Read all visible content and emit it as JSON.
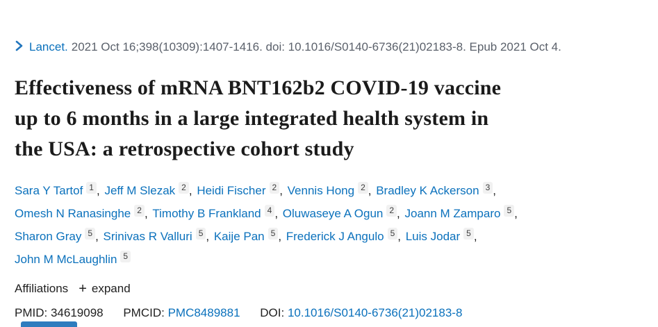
{
  "citation": {
    "journal_link": "Lancet.",
    "details": "2021 Oct 16;398(10309):1407-1416. doi: 10.1016/S0140-6736(21)02183-8. Epub 2021 Oct 4."
  },
  "title_lines": [
    "Effectiveness of mRNA BNT162b2 COVID-19 vaccine",
    "up to 6 months in a large integrated health system in",
    "the USA: a retrospective cohort study"
  ],
  "authors": [
    {
      "name": "Sara Y Tartof",
      "sup": "1"
    },
    {
      "name": "Jeff M Slezak",
      "sup": "2"
    },
    {
      "name": "Heidi Fischer",
      "sup": "2"
    },
    {
      "name": "Vennis Hong",
      "sup": "2"
    },
    {
      "name": "Bradley K Ackerson",
      "sup": "3"
    },
    {
      "name": "Omesh N Ranasinghe",
      "sup": "2"
    },
    {
      "name": "Timothy B Frankland",
      "sup": "4"
    },
    {
      "name": "Oluwaseye A Ogun",
      "sup": "2"
    },
    {
      "name": "Joann M Zamparo",
      "sup": "5"
    },
    {
      "name": "Sharon Gray",
      "sup": "5"
    },
    {
      "name": "Srinivas R Valluri",
      "sup": "5"
    },
    {
      "name": "Kaije Pan",
      "sup": "5"
    },
    {
      "name": "Frederick J Angulo",
      "sup": "5"
    },
    {
      "name": "Luis Jodar",
      "sup": "5"
    },
    {
      "name": "John M McLaughlin",
      "sup": "5"
    }
  ],
  "affiliations": {
    "label": "Affiliations",
    "expand_icon": "+",
    "expand_label": "expand"
  },
  "identifiers": {
    "pmid_label": "PMID:",
    "pmid": "34619098",
    "pmcid_label": "PMCID:",
    "pmcid": "PMC8489881",
    "doi_label": "DOI:",
    "doi": "10.1016/S0140-6736(21)02183-8"
  },
  "colors": {
    "link_blue": "#0b71bc",
    "chevron_blue": "#2276bd",
    "citation_gray": "#5b616b",
    "title_black": "#1b1b1b",
    "badge_background": "#f1f1f1",
    "fulltext_bar_blue": "#2e7cbe"
  }
}
